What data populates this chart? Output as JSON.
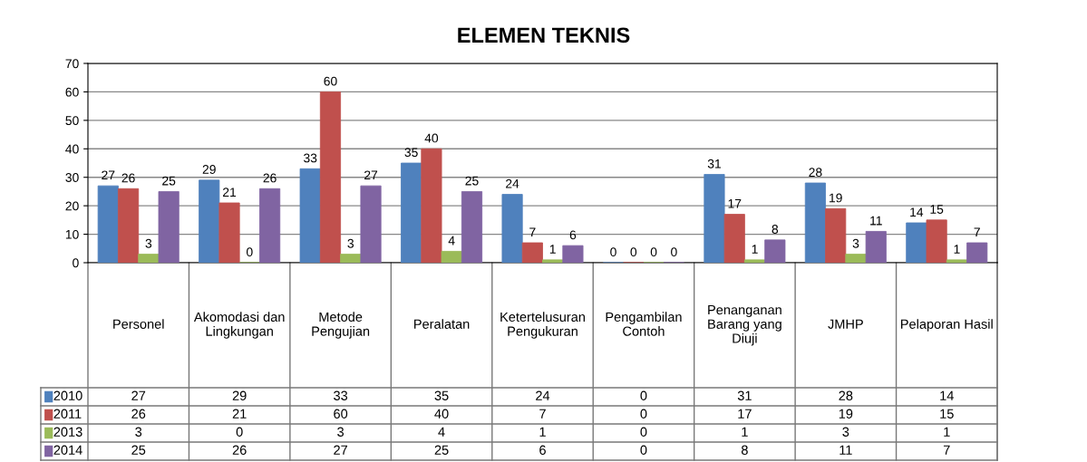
{
  "chart_data": {
    "type": "bar",
    "title": "ELEMEN TEKNIS",
    "categories": [
      "Personel",
      "Akomodasi dan\nLingkungan",
      "Metode\nPengujian",
      "Peralatan",
      "Ketertelusuran\nPengukuran",
      "Pengambilan\nContoh",
      "Penanganan\nBarang yang\nDiuji",
      "JMHP",
      "Pelaporan Hasil"
    ],
    "series": [
      {
        "name": "2010",
        "color": "#4f81bd",
        "values": [
          27,
          29,
          33,
          35,
          24,
          0,
          31,
          28,
          14
        ],
        "value_labels": [
          "27",
          "29",
          "33",
          "35",
          "24",
          "0",
          "31",
          "28",
          "14"
        ]
      },
      {
        "name": "2011",
        "color": "#c0504d",
        "values": [
          26,
          21,
          60,
          40,
          7,
          0,
          17,
          19,
          15
        ],
        "value_labels": [
          "26",
          "21",
          "60",
          "40",
          "7",
          "0",
          "17",
          "19",
          "15"
        ]
      },
      {
        "name": "2013",
        "color": "#9bbb59",
        "values": [
          3,
          0,
          3,
          4,
          1,
          0,
          1,
          3,
          1
        ],
        "value_labels": [
          "3",
          "0",
          "3",
          "4",
          "1",
          "0",
          "1",
          "3",
          "1"
        ]
      },
      {
        "name": "2014",
        "color": "#8064a2",
        "values": [
          25,
          26,
          27,
          25,
          6,
          0,
          8,
          11,
          7
        ],
        "value_labels": [
          "25",
          "26",
          "27",
          "25",
          "6",
          "0",
          "8",
          "11",
          "7"
        ]
      }
    ],
    "ylim": [
      0,
      70
    ],
    "yticks": [
      0,
      10,
      20,
      30,
      40,
      50,
      60,
      70
    ],
    "grid": "y",
    "legend": "bottom",
    "annotations": [
      "27",
      "29",
      "33",
      "35",
      "24",
      "0",
      "31",
      "28",
      "14",
      "26",
      "21",
      "60",
      "40",
      "7",
      "0",
      "17",
      "19",
      "15",
      "3",
      "0",
      "3",
      "4",
      "1",
      "0",
      "1",
      "3",
      "1",
      "25",
      "26",
      "27",
      "25",
      "6",
      "0",
      "8",
      "11",
      "7"
    ]
  }
}
